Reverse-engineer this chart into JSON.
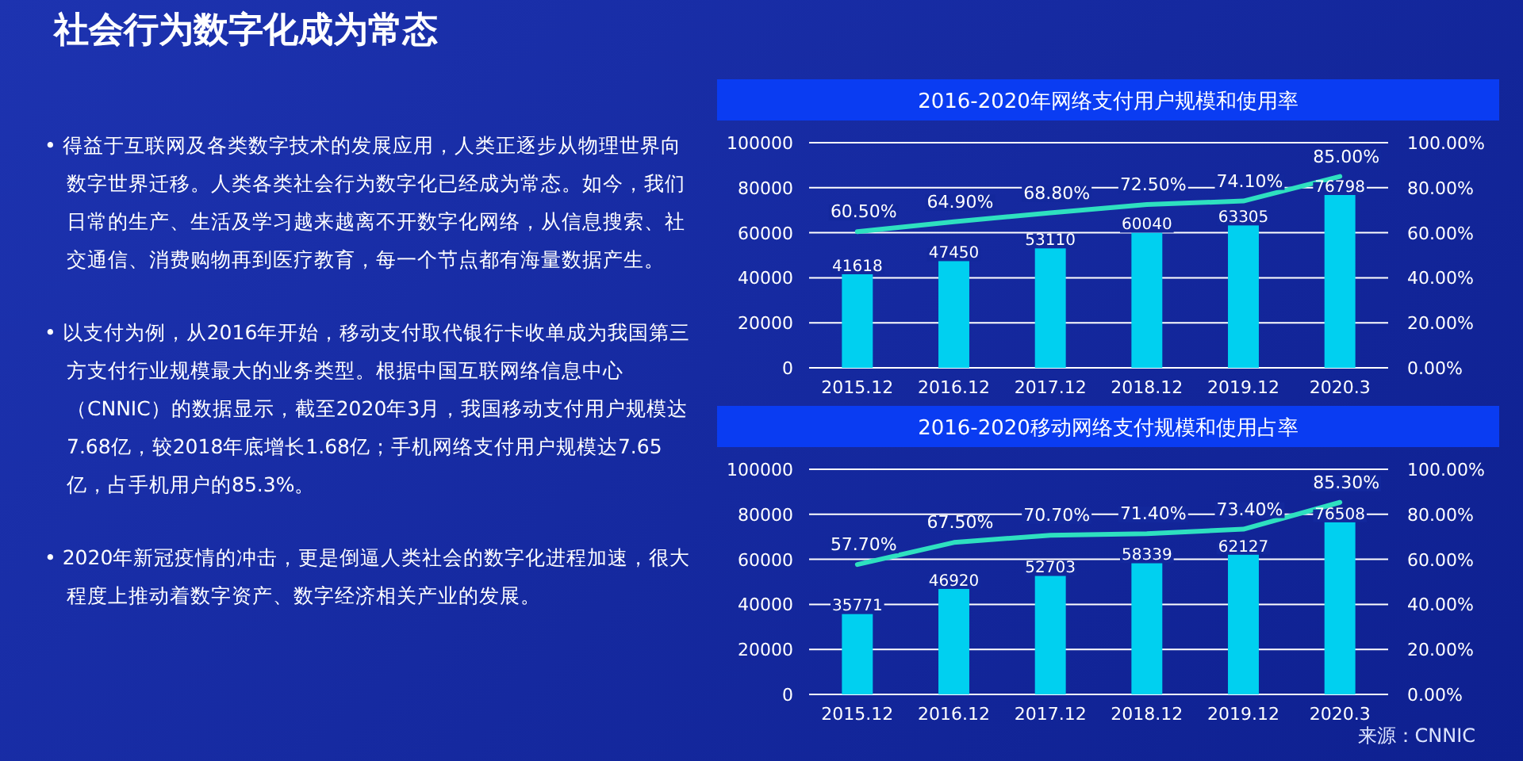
{
  "chart_data": [
    {
      "type": "other",
      "title": "社会行为数字化成为常态",
      "annotations": [
        "• 得益于互联网及各类数字技术的发展应用，人类正逐步从物理世界向数字世界迁移。人类各类社会行为数字化已经成为常态。如今，我们日常的生产、生活及学习越来越离不开数字化网络，从信息搜索、社交通信、消费购物再到医疗教育，每一个节点都有海量数据产生。",
        "• 以支付为例，从2016年开始，移动支付取代银行卡收单成为我国第三方支付行业规模最大的业务类型。根据中国互联网络信息中心（CNNIC）的数据显示，截至2020年3月，我国移动支付用户规模达7.68亿，较2018年底增长1.68亿；手机网络支付用户规模达7.65亿，占手机用户的85.3%。",
        "• 2020年新冠疫情的冲击，更是倒逼人类社会的数字化进程加速，很大程度上推动着数字资产、数字经济相关产业的发展。"
      ]
    },
    {
      "type": "bar",
      "title": "2016-2020年网络支付用户规模和使用率",
      "categories": [
        "2015.12",
        "2016.12",
        "2017.12",
        "2018.12",
        "2019.12",
        "2020.3"
      ],
      "series": [
        {
          "type": "bar",
          "color": "#00d0f0",
          "values": [
            41618,
            47450,
            53110,
            60040,
            63305,
            76798
          ],
          "value_labels": [
            "41618",
            "47450",
            "53110",
            "60040",
            "63305",
            "76798"
          ]
        },
        {
          "type": "line",
          "axis": "y2",
          "color": "#2ee0c0",
          "values": [
            60.5,
            64.9,
            68.8,
            72.5,
            74.1,
            85.0
          ],
          "value_labels": [
            "60.50%",
            "64.90%",
            "68.80%",
            "72.50%",
            "74.10%",
            "85.00%"
          ]
        }
      ],
      "ylim": [
        0,
        100000
      ],
      "yticks": [
        0,
        20000,
        40000,
        60000,
        80000,
        100000
      ],
      "y2lim": [
        0,
        100
      ],
      "y2ticks": [
        {
          "value": 0,
          "label": "0.00%"
        },
        {
          "value": 20,
          "label": "20.00%"
        },
        {
          "value": 40,
          "label": "40.00%"
        },
        {
          "value": 60,
          "label": "60.00%"
        },
        {
          "value": 80,
          "label": "80.00%"
        },
        {
          "value": 100,
          "label": "100.00%"
        }
      ],
      "grid": "y"
    },
    {
      "type": "bar",
      "title": "2016-2020移动网络支付规模和使用占率",
      "categories": [
        "2015.12",
        "2016.12",
        "2017.12",
        "2018.12",
        "2019.12",
        "2020.3"
      ],
      "series": [
        {
          "type": "bar",
          "color": "#00d0f0",
          "values": [
            35771,
            46920,
            52703,
            58339,
            62127,
            76508
          ],
          "value_labels": [
            "35771",
            "46920",
            "52703",
            "58339",
            "62127",
            "76508"
          ]
        },
        {
          "type": "line",
          "axis": "y2",
          "color": "#2ee0c0",
          "values": [
            57.7,
            67.5,
            70.7,
            71.4,
            73.4,
            85.3
          ],
          "value_labels": [
            "57.70%",
            "67.50%",
            "70.70%",
            "71.40%",
            "73.40%",
            "85.30%"
          ]
        }
      ],
      "ylim": [
        0,
        100000
      ],
      "yticks": [
        0,
        20000,
        40000,
        60000,
        80000,
        100000
      ],
      "y2lim": [
        0,
        100
      ],
      "y2ticks": [
        {
          "value": 0,
          "label": "0.00%"
        },
        {
          "value": 20,
          "label": "20.00%"
        },
        {
          "value": 40,
          "label": "40.00%"
        },
        {
          "value": 60,
          "label": "60.00%"
        },
        {
          "value": 80,
          "label": "80.00%"
        },
        {
          "value": 100,
          "label": "100.00%"
        }
      ],
      "grid": "y",
      "annotations": [
        "来源：CNNIC"
      ]
    }
  ]
}
